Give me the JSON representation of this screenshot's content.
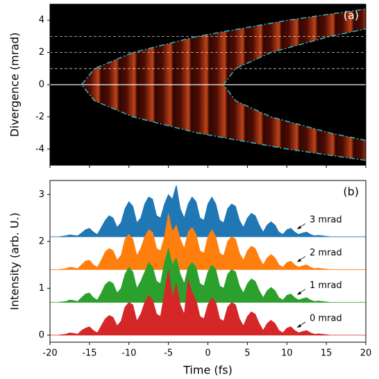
{
  "chart_data": [
    {
      "type": "line",
      "label": "(a)",
      "ylabel": "Divergence (mrad)",
      "xlim": [
        -20,
        20
      ],
      "ylim": [
        -5,
        5
      ],
      "yticks": [
        -4,
        -2,
        0,
        2,
        4
      ],
      "background": "#000000",
      "hlines": [
        0,
        1,
        2,
        3
      ],
      "series": [
        {
          "color": "#2fb8c0",
          "x": [
            20.0,
            10.08,
            -1.33,
            -9.48,
            -14.37,
            -16,
            -14.37,
            -9.48,
            -1.33,
            10.08,
            20.0
          ],
          "values": [
            -4.7,
            -4,
            -3,
            -2,
            -1,
            0,
            1,
            2,
            3,
            4,
            4.7
          ]
        },
        {
          "color": "#2fb8c0",
          "x": [
            20.0,
            15.5,
            8,
            3.5,
            2,
            3.5,
            8,
            15.5,
            20.0
          ],
          "values": [
            -3.46,
            -3,
            -2,
            -1,
            0,
            1,
            2,
            3,
            3.46
          ]
        }
      ]
    },
    {
      "type": "area",
      "label": "(b)",
      "xlabel": "Time (fs)",
      "ylabel": "Intensity (arb. U.)",
      "xlim": [
        -20,
        20
      ],
      "ylim": [
        -0.15,
        3.3
      ],
      "xticks": [
        -20,
        -15,
        -10,
        -5,
        0,
        5,
        10,
        15,
        20
      ],
      "yticks": [
        0,
        1,
        2,
        3
      ],
      "x": [
        -20,
        -19.5,
        -19,
        -18.5,
        -18,
        -17.5,
        -17,
        -16.5,
        -16,
        -15.5,
        -15,
        -14.5,
        -14,
        -13.5,
        -13,
        -12.5,
        -12,
        -11.5,
        -11,
        -10.5,
        -10,
        -9.5,
        -9,
        -8.5,
        -8,
        -7.5,
        -7,
        -6.5,
        -6,
        -5.5,
        -5,
        -4.5,
        -4,
        -3.5,
        -3,
        -2.5,
        -2,
        -1.5,
        -1,
        -0.5,
        0,
        0.5,
        1,
        1.5,
        2,
        2.5,
        3,
        3.5,
        4,
        4.5,
        5,
        5.5,
        6,
        6.5,
        7,
        7.5,
        8,
        8.5,
        9,
        9.5,
        10,
        10.5,
        11,
        11.5,
        12,
        12.5,
        13,
        13.5,
        14,
        14.5,
        15,
        15.5,
        16,
        16.5,
        17,
        17.5,
        18,
        18.5,
        19,
        19.5,
        20
      ],
      "series": [
        {
          "name": "3 mrad",
          "color": "#1f77b4",
          "values": [
            2.1,
            2.1,
            2.1,
            2.11,
            2.12,
            2.14,
            2.13,
            2.12,
            2.18,
            2.25,
            2.28,
            2.2,
            2.15,
            2.3,
            2.45,
            2.55,
            2.5,
            2.3,
            2.4,
            2.7,
            2.85,
            2.75,
            2.4,
            2.5,
            2.8,
            2.95,
            2.9,
            2.55,
            2.5,
            2.8,
            3.0,
            2.9,
            3.2,
            2.7,
            2.5,
            2.8,
            2.95,
            2.85,
            2.5,
            2.45,
            2.8,
            2.95,
            2.8,
            2.45,
            2.4,
            2.7,
            2.8,
            2.75,
            2.45,
            2.3,
            2.5,
            2.6,
            2.55,
            2.35,
            2.2,
            2.35,
            2.42,
            2.35,
            2.2,
            2.15,
            2.25,
            2.28,
            2.2,
            2.15,
            2.18,
            2.2,
            2.15,
            2.12,
            2.13,
            2.12,
            2.11,
            2.1,
            2.1,
            2.1,
            2.1,
            2.1,
            2.1,
            2.1,
            2.1,
            2.1,
            2.1
          ]
        },
        {
          "name": "2 mrad",
          "color": "#ff7f0e",
          "values": [
            1.4,
            1.4,
            1.4,
            1.41,
            1.42,
            1.45,
            1.44,
            1.42,
            1.5,
            1.58,
            1.6,
            1.5,
            1.45,
            1.6,
            1.78,
            1.85,
            1.8,
            1.6,
            1.7,
            2.05,
            2.15,
            2.05,
            1.7,
            1.85,
            2.1,
            2.25,
            2.2,
            1.85,
            1.8,
            2.1,
            2.6,
            2.2,
            2.35,
            2.05,
            1.85,
            2.2,
            2.3,
            2.15,
            1.8,
            1.75,
            2.1,
            2.25,
            2.1,
            1.75,
            1.7,
            2.0,
            2.1,
            2.05,
            1.75,
            1.6,
            1.8,
            1.9,
            1.85,
            1.65,
            1.5,
            1.65,
            1.72,
            1.65,
            1.5,
            1.45,
            1.55,
            1.58,
            1.5,
            1.45,
            1.48,
            1.5,
            1.45,
            1.42,
            1.43,
            1.42,
            1.41,
            1.4,
            1.4,
            1.4,
            1.4,
            1.4,
            1.4,
            1.4,
            1.4,
            1.4,
            1.4
          ]
        },
        {
          "name": "1 mrad",
          "color": "#2ca02c",
          "values": [
            0.7,
            0.7,
            0.7,
            0.71,
            0.72,
            0.75,
            0.74,
            0.72,
            0.8,
            0.88,
            0.9,
            0.8,
            0.75,
            0.9,
            1.08,
            1.15,
            1.1,
            0.9,
            1.0,
            1.3,
            1.45,
            1.35,
            1.0,
            1.15,
            1.35,
            1.55,
            1.45,
            1.15,
            1.1,
            1.55,
            1.85,
            1.5,
            1.65,
            1.3,
            1.1,
            1.45,
            1.55,
            1.45,
            1.1,
            1.05,
            1.35,
            1.5,
            1.4,
            1.05,
            1.0,
            1.3,
            1.4,
            1.35,
            1.05,
            0.9,
            1.1,
            1.2,
            1.15,
            0.95,
            0.8,
            0.95,
            1.02,
            0.95,
            0.8,
            0.75,
            0.85,
            0.88,
            0.8,
            0.75,
            0.78,
            0.8,
            0.75,
            0.72,
            0.73,
            0.72,
            0.71,
            0.7,
            0.7,
            0.7,
            0.7,
            0.7,
            0.7,
            0.7,
            0.7,
            0.7,
            0.7
          ]
        },
        {
          "name": "0 mrad",
          "color": "#d62728",
          "values": [
            0.0,
            0.0,
            0.0,
            0.01,
            0.02,
            0.05,
            0.04,
            0.02,
            0.1,
            0.15,
            0.18,
            0.1,
            0.05,
            0.2,
            0.35,
            0.42,
            0.38,
            0.2,
            0.3,
            0.6,
            0.7,
            0.65,
            0.3,
            0.45,
            0.7,
            0.85,
            0.75,
            0.45,
            0.4,
            0.9,
            1.4,
            0.8,
            1.1,
            0.65,
            0.45,
            1.2,
            0.9,
            0.75,
            0.4,
            0.35,
            0.65,
            0.8,
            0.7,
            0.35,
            0.3,
            0.6,
            0.7,
            0.65,
            0.35,
            0.2,
            0.4,
            0.5,
            0.45,
            0.25,
            0.1,
            0.25,
            0.32,
            0.25,
            0.1,
            0.05,
            0.15,
            0.18,
            0.1,
            0.05,
            0.08,
            0.1,
            0.05,
            0.02,
            0.03,
            0.02,
            0.01,
            0.0,
            0.0,
            0.0,
            0.0,
            0.0,
            0.0,
            0.0,
            0.0,
            0.0,
            0.0
          ]
        }
      ]
    }
  ]
}
